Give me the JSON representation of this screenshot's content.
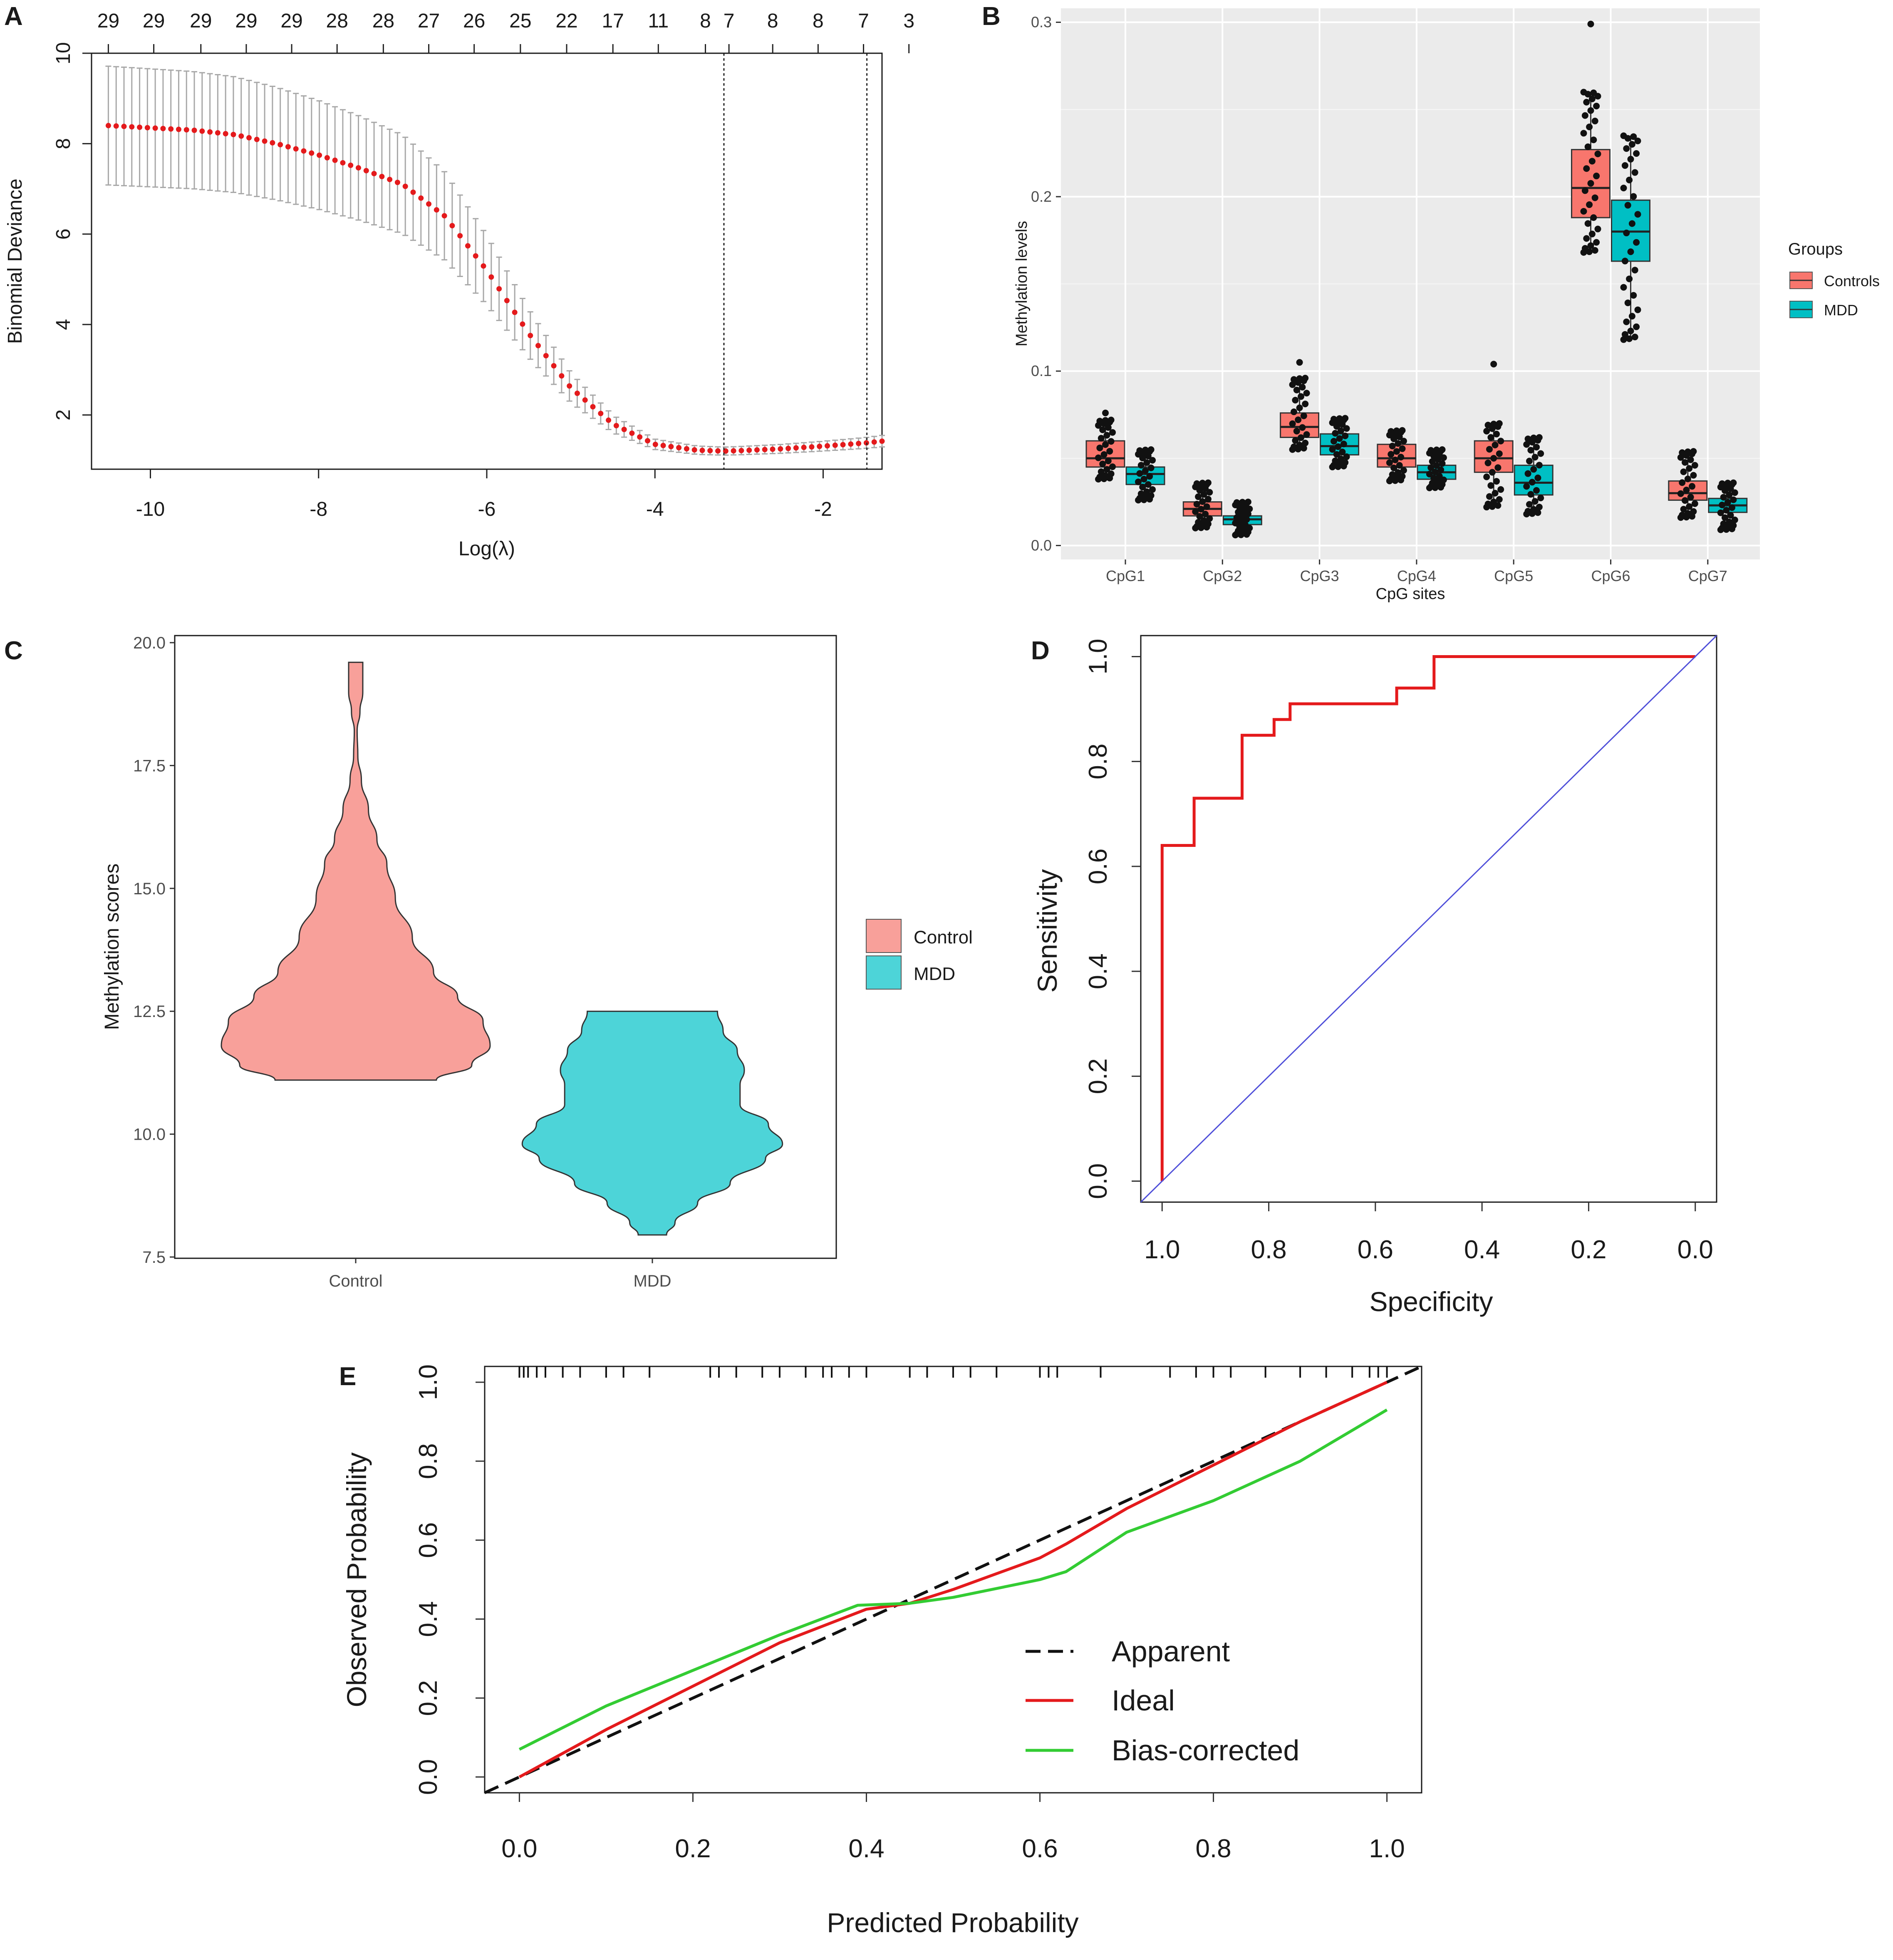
{
  "figure": {
    "panel_labels": [
      "A",
      "B",
      "C",
      "D",
      "E"
    ]
  },
  "chart_data": [
    {
      "panel": "A",
      "type": "scatter",
      "title": "",
      "xlabel": "Log(λ)",
      "ylabel": "Binomial Deviance",
      "xlim": [
        -10.7,
        -1.3
      ],
      "ylim": [
        0.8,
        10
      ],
      "xticks": [
        -10,
        -8,
        -6,
        -4,
        -2
      ],
      "yticks": [
        2,
        4,
        6,
        8,
        10
      ],
      "top_axis_labels": [
        "29",
        "29",
        "29",
        "29",
        "29",
        "28",
        "28",
        "27",
        "26",
        "25",
        "22",
        "17",
        "11",
        "8",
        "7",
        "8",
        "8",
        "7",
        "3"
      ],
      "top_axis_positions": [
        -10.5,
        -9.96,
        -9.4,
        -8.86,
        -8.32,
        -7.78,
        -7.23,
        -6.69,
        -6.15,
        -5.6,
        -5.05,
        -4.5,
        -3.96,
        -3.4,
        -3.12,
        -2.6,
        -2.06,
        -1.52,
        -0.98
      ],
      "vlines": [
        -3.18,
        -1.48
      ],
      "curve_knots": [
        [
          -10.5,
          8.4
        ],
        [
          -9.5,
          8.3
        ],
        [
          -9,
          8.2
        ],
        [
          -8.5,
          8.0
        ],
        [
          -8,
          7.75
        ],
        [
          -7.5,
          7.45
        ],
        [
          -7,
          7.1
        ],
        [
          -6.5,
          6.4
        ],
        [
          -6,
          5.2
        ],
        [
          -5.5,
          3.8
        ],
        [
          -5,
          2.6
        ],
        [
          -4.5,
          1.8
        ],
        [
          -4,
          1.35
        ],
        [
          -3.5,
          1.22
        ],
        [
          -3.18,
          1.2
        ],
        [
          -3,
          1.21
        ],
        [
          -2.5,
          1.25
        ],
        [
          -2,
          1.31
        ],
        [
          -1.5,
          1.38
        ],
        [
          -1.3,
          1.42
        ]
      ],
      "n_points": 100,
      "point_color": "#e41a1c",
      "errorbar_color": "#a8a8a8"
    },
    {
      "panel": "B",
      "type": "box",
      "title": "",
      "xlabel": "CpG sites",
      "ylabel": "Methylation levels",
      "ylim": [
        -0.008,
        0.308
      ],
      "yticks": [
        0.0,
        0.1,
        0.2,
        0.3
      ],
      "ytick_labels": [
        "0.0",
        "0.1",
        "0.2",
        "0.3"
      ],
      "categories": [
        "CpG1",
        "CpG2",
        "CpG3",
        "CpG4",
        "CpG5",
        "CpG6",
        "CpG7"
      ],
      "legend_title": "Groups",
      "series": [
        {
          "name": "Controls",
          "color": "#f8766d",
          "boxes": [
            {
              "q1": 0.045,
              "median": 0.05,
              "q3": 0.06,
              "min": 0.038,
              "max": 0.072,
              "outliers": [
                0.076
              ]
            },
            {
              "q1": 0.017,
              "median": 0.021,
              "q3": 0.025,
              "min": 0.01,
              "max": 0.036,
              "outliers": []
            },
            {
              "q1": 0.062,
              "median": 0.068,
              "q3": 0.076,
              "min": 0.055,
              "max": 0.096,
              "outliers": [
                0.105
              ]
            },
            {
              "q1": 0.045,
              "median": 0.05,
              "q3": 0.058,
              "min": 0.037,
              "max": 0.066,
              "outliers": []
            },
            {
              "q1": 0.042,
              "median": 0.05,
              "q3": 0.06,
              "min": 0.022,
              "max": 0.07,
              "outliers": [
                0.104
              ]
            },
            {
              "q1": 0.188,
              "median": 0.205,
              "q3": 0.227,
              "min": 0.168,
              "max": 0.26,
              "outliers": [
                0.299
              ]
            },
            {
              "q1": 0.026,
              "median": 0.03,
              "q3": 0.037,
              "min": 0.016,
              "max": 0.054,
              "outliers": []
            }
          ]
        },
        {
          "name": "MDD",
          "color": "#00bfc4",
          "boxes": [
            {
              "q1": 0.035,
              "median": 0.041,
              "q3": 0.045,
              "min": 0.026,
              "max": 0.055,
              "outliers": []
            },
            {
              "q1": 0.012,
              "median": 0.015,
              "q3": 0.017,
              "min": 0.006,
              "max": 0.025,
              "outliers": []
            },
            {
              "q1": 0.052,
              "median": 0.057,
              "q3": 0.064,
              "min": 0.045,
              "max": 0.073,
              "outliers": []
            },
            {
              "q1": 0.038,
              "median": 0.042,
              "q3": 0.046,
              "min": 0.033,
              "max": 0.055,
              "outliers": []
            },
            {
              "q1": 0.029,
              "median": 0.036,
              "q3": 0.046,
              "min": 0.018,
              "max": 0.062,
              "outliers": []
            },
            {
              "q1": 0.163,
              "median": 0.18,
              "q3": 0.198,
              "min": 0.118,
              "max": 0.235,
              "outliers": []
            },
            {
              "q1": 0.019,
              "median": 0.023,
              "q3": 0.027,
              "min": 0.009,
              "max": 0.036,
              "outliers": []
            }
          ]
        }
      ]
    },
    {
      "panel": "C",
      "type": "violin",
      "title": "",
      "xlabel": "",
      "ylabel": "Methylation scores",
      "ylim": [
        7.5,
        20.0
      ],
      "yticks": [
        7.5,
        10.0,
        12.5,
        15.0,
        17.5,
        20.0
      ],
      "ytick_labels": [
        "7.5",
        "10.0",
        "12.5",
        "15.0",
        "17.5",
        "20.0"
      ],
      "categories": [
        "Control",
        "MDD"
      ],
      "legend_entries": [
        "Control",
        "MDD"
      ],
      "series": [
        {
          "name": "Control",
          "color": "#f8a09a",
          "min": 11.1,
          "max": 19.6,
          "density": [
            [
              11.1,
              0.57
            ],
            [
              11.4,
              0.82
            ],
            [
              11.8,
              0.95
            ],
            [
              12.3,
              0.9
            ],
            [
              12.8,
              0.72
            ],
            [
              13.3,
              0.55
            ],
            [
              14.0,
              0.4
            ],
            [
              14.8,
              0.28
            ],
            [
              15.5,
              0.22
            ],
            [
              16.0,
              0.15
            ],
            [
              16.6,
              0.09
            ],
            [
              17.2,
              0.04
            ],
            [
              17.7,
              0.015
            ],
            [
              18.2,
              0.01
            ],
            [
              18.6,
              0.03
            ],
            [
              19.0,
              0.05
            ],
            [
              19.3,
              0.05
            ],
            [
              19.6,
              0.05
            ]
          ]
        },
        {
          "name": "MDD",
          "color": "#4dd4d8",
          "min": 7.95,
          "max": 12.5,
          "density": [
            [
              7.95,
              0.1
            ],
            [
              8.2,
              0.16
            ],
            [
              8.6,
              0.32
            ],
            [
              9.0,
              0.55
            ],
            [
              9.5,
              0.8
            ],
            [
              9.8,
              0.92
            ],
            [
              10.2,
              0.82
            ],
            [
              10.6,
              0.62
            ],
            [
              11.0,
              0.62
            ],
            [
              11.3,
              0.65
            ],
            [
              11.7,
              0.6
            ],
            [
              12.1,
              0.5
            ],
            [
              12.5,
              0.46
            ]
          ]
        }
      ]
    },
    {
      "panel": "D",
      "type": "line",
      "title": "",
      "xlabel": "Specificity",
      "ylabel": "Sensitivity",
      "xlim": [
        1.04,
        -0.04
      ],
      "ylim": [
        -0.04,
        1.04
      ],
      "xticks": [
        1.0,
        0.8,
        0.6,
        0.4,
        0.2,
        0.0
      ],
      "yticks": [
        0.0,
        0.2,
        0.4,
        0.6,
        0.8,
        1.0
      ],
      "tick_labels": [
        "0.0",
        "0.2",
        "0.4",
        "0.6",
        "0.8",
        "1.0"
      ],
      "series": [
        {
          "name": "ROC",
          "color": "#e41a1c",
          "x": [
            1.0,
            1.0,
            0.94,
            0.94,
            0.85,
            0.85,
            0.79,
            0.79,
            0.76,
            0.76,
            0.56,
            0.56,
            0.49,
            0.49,
            0.0
          ],
          "y": [
            0.0,
            0.64,
            0.64,
            0.73,
            0.73,
            0.85,
            0.85,
            0.88,
            0.88,
            0.91,
            0.91,
            0.94,
            0.94,
            1.0,
            1.0
          ]
        },
        {
          "name": "chance",
          "color": "#4f4fd9",
          "x": [
            1.04,
            -0.04
          ],
          "y": [
            -0.04,
            1.04
          ]
        }
      ]
    },
    {
      "panel": "E",
      "type": "line",
      "title": "",
      "xlabel": "Predicted Probability",
      "ylabel": "Observed Probability",
      "xlim": [
        -0.04,
        1.04
      ],
      "ylim": [
        -0.04,
        1.04
      ],
      "xticks": [
        0.0,
        0.2,
        0.4,
        0.6,
        0.8,
        1.0
      ],
      "yticks": [
        0.0,
        0.2,
        0.4,
        0.6,
        0.8,
        1.0
      ],
      "tick_labels": [
        "0.0",
        "0.2",
        "0.4",
        "0.6",
        "0.8",
        "1.0"
      ],
      "legend_entries": [
        "Apparent",
        "Ideal",
        "Bias-corrected"
      ],
      "rug": [
        0.0,
        0.005,
        0.01,
        0.02,
        0.03,
        0.05,
        0.07,
        0.1,
        0.12,
        0.15,
        0.22,
        0.23,
        0.25,
        0.28,
        0.3,
        0.33,
        0.35,
        0.36,
        0.38,
        0.4,
        0.45,
        0.47,
        0.5,
        0.52,
        0.55,
        0.6,
        0.61,
        0.62,
        0.67,
        0.75,
        0.78,
        0.8,
        0.82,
        0.86,
        0.9,
        0.93,
        0.96,
        0.98,
        0.99,
        1.0
      ],
      "series": [
        {
          "name": "Apparent",
          "color": "#111111",
          "dash": true,
          "x": [
            -0.04,
            1.04
          ],
          "y": [
            -0.04,
            1.04
          ]
        },
        {
          "name": "Ideal",
          "color": "#e41a1c",
          "x": [
            0.0,
            0.1,
            0.2,
            0.3,
            0.4,
            0.45,
            0.5,
            0.55,
            0.6,
            0.63,
            0.7,
            0.8,
            0.9,
            1.0
          ],
          "y": [
            0.0,
            0.12,
            0.23,
            0.34,
            0.425,
            0.44,
            0.475,
            0.515,
            0.555,
            0.59,
            0.68,
            0.79,
            0.9,
            1.0
          ]
        },
        {
          "name": "Bias-corrected",
          "color": "#33cc33",
          "x": [
            0.0,
            0.1,
            0.2,
            0.3,
            0.39,
            0.45,
            0.5,
            0.6,
            0.63,
            0.7,
            0.8,
            0.9,
            1.0
          ],
          "y": [
            0.07,
            0.18,
            0.27,
            0.36,
            0.435,
            0.44,
            0.455,
            0.5,
            0.52,
            0.62,
            0.7,
            0.8,
            0.93
          ]
        }
      ]
    }
  ]
}
